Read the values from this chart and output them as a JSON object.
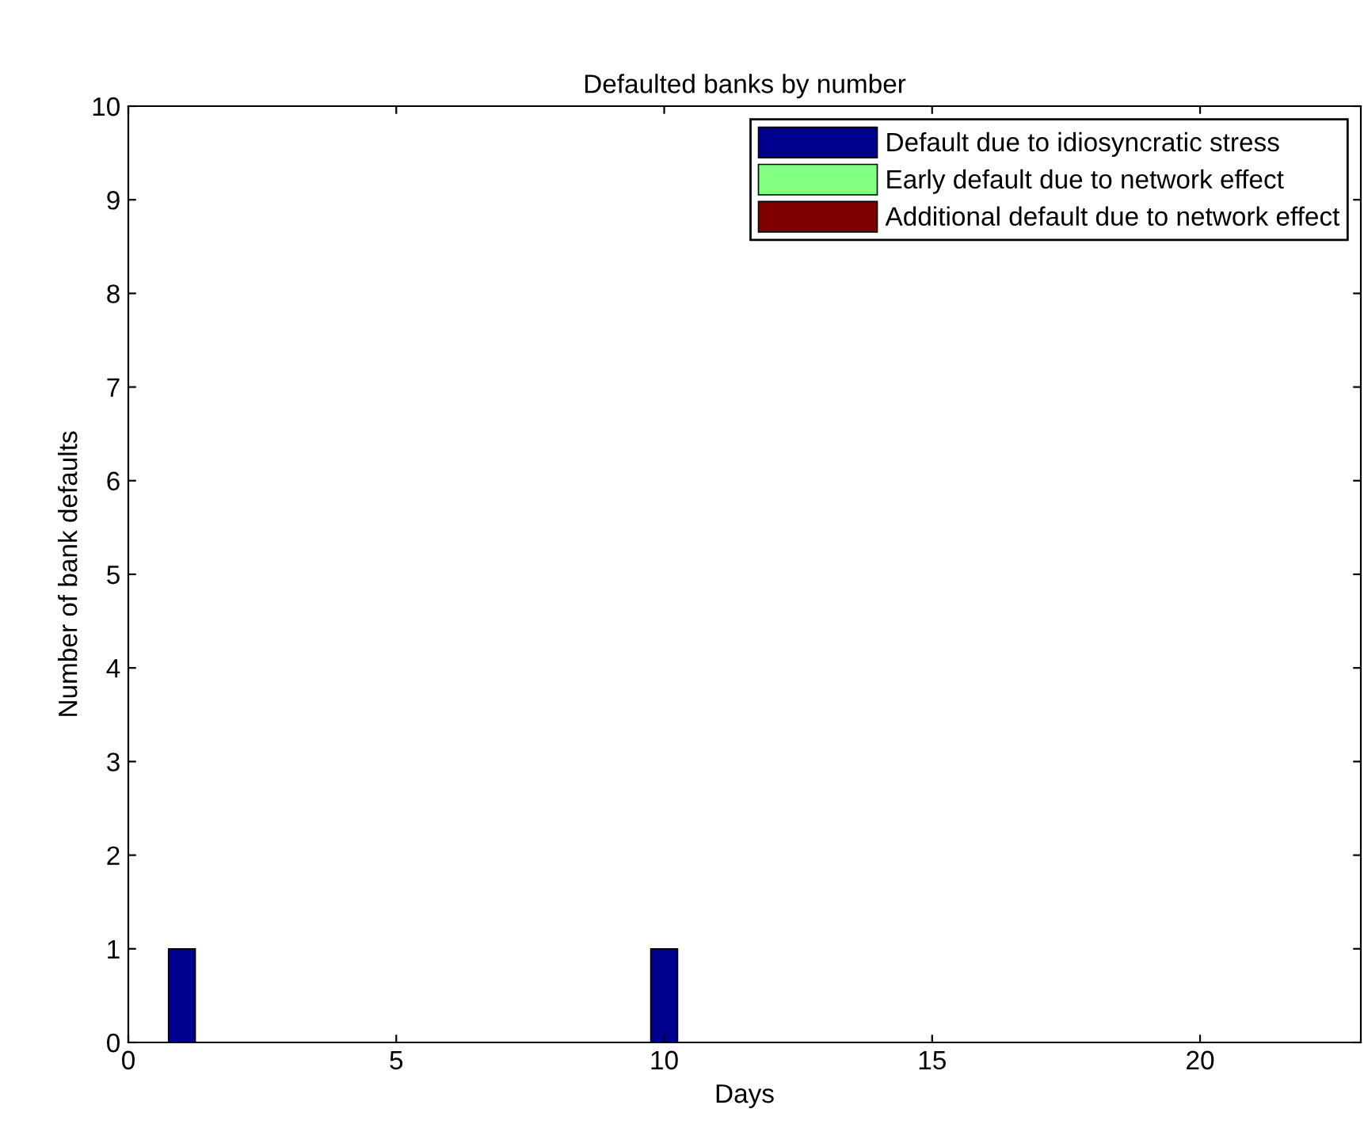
{
  "chart_data": {
    "type": "bar",
    "title": "Defaulted banks by number",
    "xlabel": "Days",
    "ylabel": "Number of bank defaults",
    "x": [
      1,
      2,
      3,
      4,
      5,
      6,
      7,
      8,
      9,
      10,
      11,
      12,
      13,
      14,
      15,
      16,
      17,
      18,
      19,
      20,
      21,
      22
    ],
    "stacked": true,
    "series": [
      {
        "name": "Default due to idiosyncratic stress",
        "color": "#00008f",
        "values": [
          1,
          0,
          0,
          0,
          0,
          0,
          0,
          0,
          0,
          1,
          0,
          0,
          0,
          0,
          0,
          0,
          0,
          0,
          0,
          0,
          0,
          0
        ]
      },
      {
        "name": "Early default due to network effect",
        "color": "#80ff80",
        "values": [
          0,
          0,
          0,
          0,
          0,
          0,
          0,
          0,
          0,
          0,
          0,
          0,
          0,
          0,
          0,
          0,
          0,
          0,
          0,
          0,
          0,
          0
        ]
      },
      {
        "name": "Additional default due to network effect",
        "color": "#800000",
        "values": [
          0,
          0,
          0,
          0,
          0,
          0,
          0,
          0,
          0,
          0,
          0,
          0,
          0,
          0,
          0,
          0,
          0,
          0,
          0,
          0,
          0,
          0
        ]
      }
    ],
    "xlim": [
      0,
      23
    ],
    "xticks": [
      0,
      5,
      10,
      15,
      20
    ],
    "ylim": [
      0,
      10
    ],
    "yticks": [
      0,
      1,
      2,
      3,
      4,
      5,
      6,
      7,
      8,
      9,
      10
    ],
    "grid": false,
    "legend": "top right"
  }
}
